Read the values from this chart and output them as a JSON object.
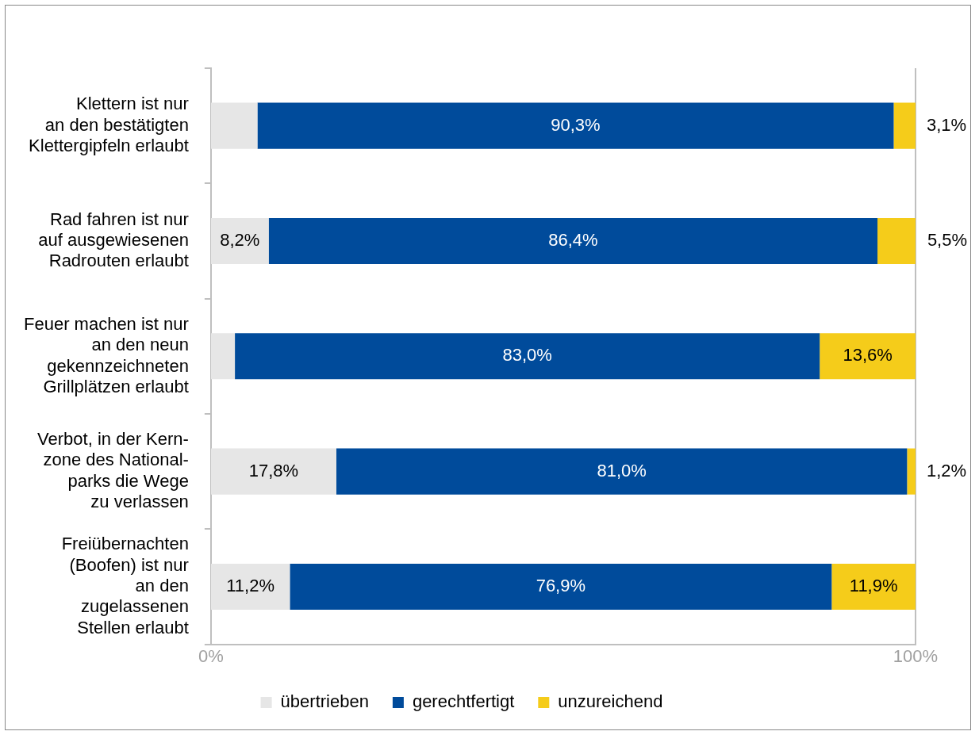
{
  "chart_data": {
    "type": "bar",
    "orientation": "horizontal",
    "stacked": true,
    "categories": [
      "Klettern ist nur\nan den bestätigten\nKlettergipfeln erlaubt",
      "Rad fahren ist nur\nauf ausgewiesenen\nRadrouten erlaubt",
      "Feuer machen ist nur\nan den neun\ngekennzeichneten\nGrillplätzen erlaubt",
      "Verbot, in der Kern-\nzone des National-\nparks die Wege\nzu verlassen",
      "Freiübernachten\n(Boofen) ist nur\nan den\nzugelassenen\nStellen erlaubt"
    ],
    "series": [
      {
        "name": "übertrieben",
        "color": "#e6e6e6",
        "values": [
          6.6,
          8.2,
          3.4,
          17.8,
          11.2
        ],
        "value_labels": [
          null,
          "8,2%",
          null,
          "17,8%",
          "11,2%"
        ]
      },
      {
        "name": "gerechtfertigt",
        "color": "#004b9b",
        "values": [
          90.3,
          86.4,
          83.0,
          81.0,
          76.9
        ],
        "value_labels": [
          "90,3%",
          "86,4%",
          "83,0%",
          "81,0%",
          "76,9%"
        ]
      },
      {
        "name": "unzureichend",
        "color": "#f5cc1a",
        "values": [
          3.1,
          5.5,
          13.6,
          1.2,
          11.9
        ],
        "value_labels": [
          "3,1%",
          "5,5%",
          "13,6%",
          "1,2%",
          "11,9%"
        ]
      }
    ],
    "xlim": [
      0,
      100
    ],
    "xticks": [
      {
        "value": 0,
        "label": "0%"
      },
      {
        "value": 100,
        "label": "100%"
      }
    ],
    "legend": "bottom"
  }
}
